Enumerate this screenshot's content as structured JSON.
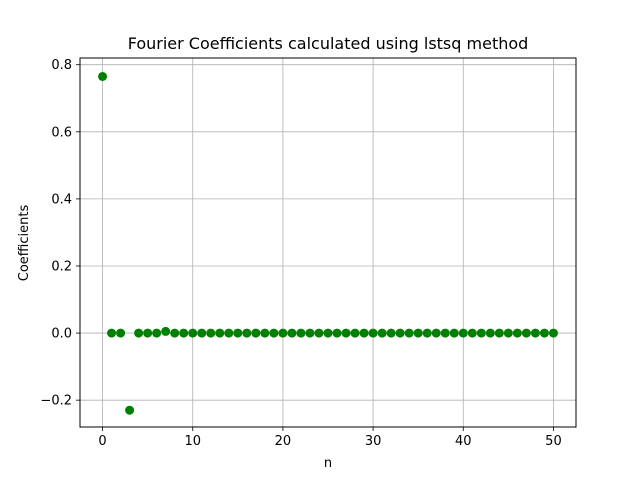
{
  "chart_data": {
    "type": "scatter",
    "title": "Fourier Coefficients calculated using lstsq method",
    "xlabel": "n",
    "ylabel": "Coefficients",
    "xlim": [
      -2.5,
      52.5
    ],
    "ylim": [
      -0.28,
      0.82
    ],
    "xticks": [
      0,
      10,
      20,
      30,
      40,
      50
    ],
    "yticks": [
      -0.2,
      0.0,
      0.2,
      0.4,
      0.6,
      0.8
    ],
    "xtick_labels": [
      "0",
      "10",
      "20",
      "30",
      "40",
      "50"
    ],
    "ytick_labels": [
      "−0.2",
      "0.0",
      "0.2",
      "0.4",
      "0.6",
      "0.8"
    ],
    "grid": true,
    "marker_color": "#008000",
    "series": [
      {
        "x": [
          0,
          1,
          2,
          3,
          4,
          5,
          6,
          7,
          8,
          9,
          10,
          11,
          12,
          13,
          14,
          15,
          16,
          17,
          18,
          19,
          20,
          21,
          22,
          23,
          24,
          25,
          26,
          27,
          28,
          29,
          30,
          31,
          32,
          33,
          34,
          35,
          36,
          37,
          38,
          39,
          40,
          41,
          42,
          43,
          44,
          45,
          46,
          47,
          48,
          49,
          50
        ],
        "values": [
          0.765,
          0.0,
          0.0,
          -0.23,
          0.0,
          0.0,
          0.0,
          0.005,
          0.0,
          0.0,
          0.0,
          0.0,
          0.0,
          0.0,
          0.0,
          0.0,
          0.0,
          0.0,
          0.0,
          0.0,
          0.0,
          0.0,
          0.0,
          0.0,
          0.0,
          0.0,
          0.0,
          0.0,
          0.0,
          0.0,
          0.0,
          0.0,
          0.0,
          0.0,
          0.0,
          0.0,
          0.0,
          0.0,
          0.0,
          0.0,
          0.0,
          0.0,
          0.0,
          0.0,
          0.0,
          0.0,
          0.0,
          0.0,
          0.0,
          0.0,
          0.0
        ]
      }
    ]
  }
}
